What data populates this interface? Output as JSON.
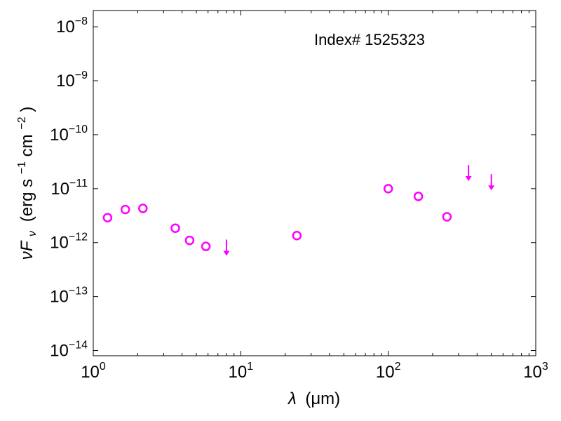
{
  "chart_data": {
    "type": "scatter",
    "annotation": "Index# 1525323",
    "xlabel": {
      "symbol": "λ",
      "unit": "(μm)"
    },
    "ylabel": {
      "symbol": "νF",
      "subscript": "ν",
      "unit_prefix": "(erg s",
      "unit_mid": " cm",
      "unit_suffix": ")",
      "exp1": "−1",
      "exp2": "−2"
    },
    "xscale": "log",
    "yscale": "log",
    "xlim": [
      1,
      1000
    ],
    "ylim": [
      8e-15,
      2e-08
    ],
    "x_ticks": [
      {
        "value": 1,
        "base": "10",
        "exp": "0"
      },
      {
        "value": 10,
        "base": "10",
        "exp": "1"
      },
      {
        "value": 100,
        "base": "10",
        "exp": "2"
      },
      {
        "value": 1000,
        "base": "10",
        "exp": "3"
      }
    ],
    "y_ticks": [
      {
        "value": 1e-14,
        "base": "10",
        "exp": "−14"
      },
      {
        "value": 1e-13,
        "base": "10",
        "exp": "−13"
      },
      {
        "value": 1e-12,
        "base": "10",
        "exp": "−12"
      },
      {
        "value": 1e-11,
        "base": "10",
        "exp": "−11"
      },
      {
        "value": 1e-10,
        "base": "10",
        "exp": "−10"
      },
      {
        "value": 1e-09,
        "base": "10",
        "exp": "−9"
      },
      {
        "value": 1e-08,
        "base": "10",
        "exp": "−8"
      }
    ],
    "series": [
      {
        "marker": "open-circle",
        "color": "#ff00ff",
        "points": [
          {
            "x": 1.25,
            "y": 2.9e-12
          },
          {
            "x": 1.65,
            "y": 4.1e-12
          },
          {
            "x": 2.17,
            "y": 4.3e-12
          },
          {
            "x": 3.6,
            "y": 1.85e-12
          },
          {
            "x": 4.5,
            "y": 1.1e-12
          },
          {
            "x": 5.8,
            "y": 8.5e-13
          },
          {
            "x": 24,
            "y": 1.35e-12
          },
          {
            "x": 100,
            "y": 1e-11
          },
          {
            "x": 160,
            "y": 7.2e-12
          },
          {
            "x": 250,
            "y": 3e-12
          }
        ]
      },
      {
        "marker": "upper-limit-arrow",
        "color": "#ff00ff",
        "points": [
          {
            "x": 8.0,
            "y": 9.5e-13
          },
          {
            "x": 350,
            "y": 2.3e-11
          },
          {
            "x": 500,
            "y": 1.55e-11
          }
        ]
      }
    ]
  }
}
